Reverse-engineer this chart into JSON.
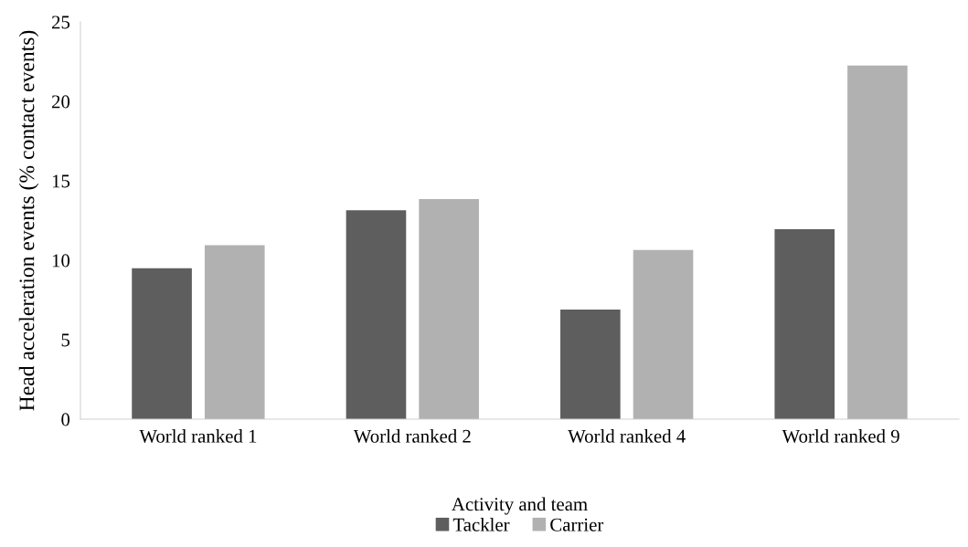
{
  "chart_data": {
    "type": "bar",
    "xlabel": "Activity and team",
    "ylabel": "Head acceleration events (% contact events)",
    "categories": [
      "World ranked 1",
      "World ranked 2",
      "World ranked 4",
      "World ranked 9"
    ],
    "series": [
      {
        "name": "Tackler",
        "color": "#5e5e5e",
        "values": [
          9.5,
          13.15,
          6.9,
          11.95
        ]
      },
      {
        "name": "Carrier",
        "color": "#b1b1b1",
        "values": [
          10.95,
          13.85,
          10.65,
          22.25
        ]
      }
    ],
    "ylim": [
      0,
      25
    ],
    "yticks": [
      0,
      5,
      10,
      15,
      20,
      25
    ],
    "grid": false,
    "legend": "bottom"
  }
}
